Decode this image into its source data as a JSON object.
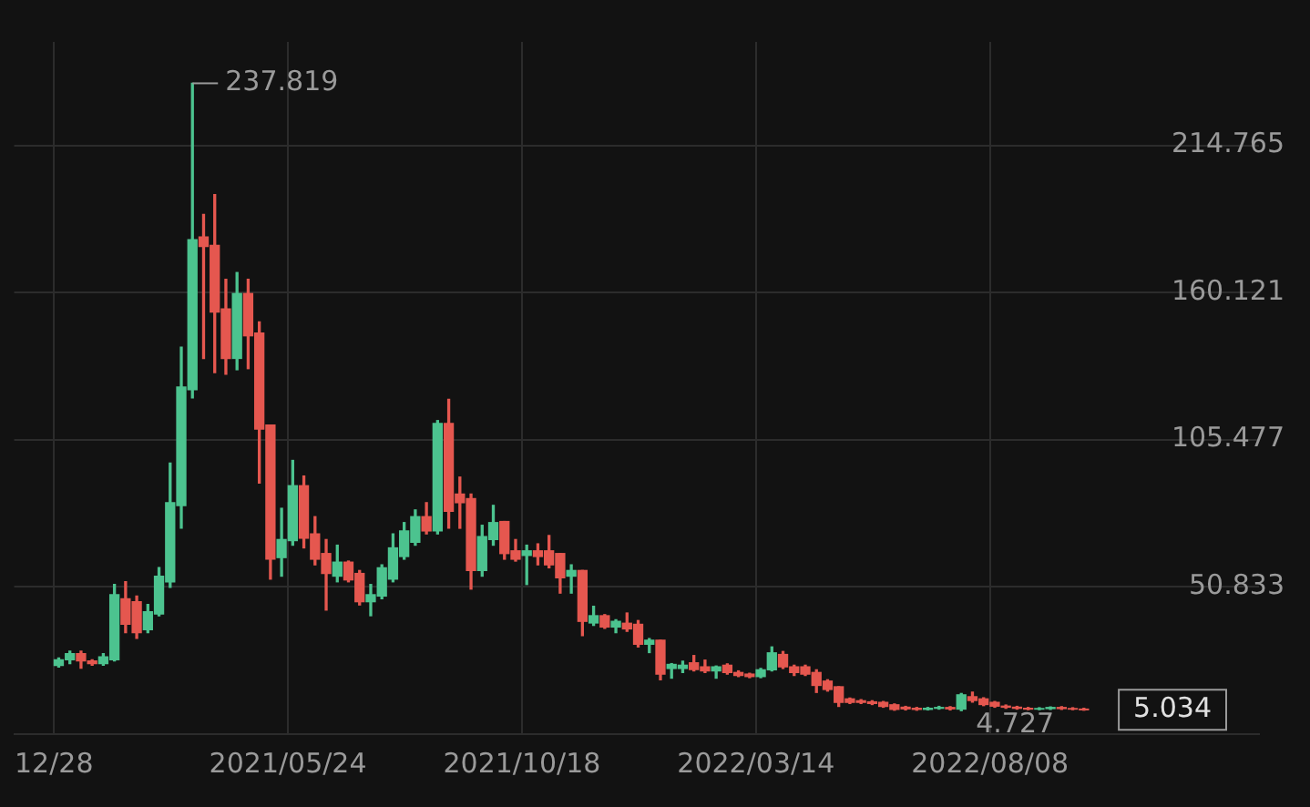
{
  "chart_data": {
    "type": "candlestick",
    "x": [
      "2020-12-31",
      "2021-01-07",
      "2021-01-14",
      "2021-01-21",
      "2021-01-28",
      "2021-02-04",
      "2021-02-11",
      "2021-02-18",
      "2021-02-25",
      "2021-03-04",
      "2021-03-11",
      "2021-03-18",
      "2021-03-25",
      "2021-04-01",
      "2021-04-08",
      "2021-04-15",
      "2021-04-22",
      "2021-04-29",
      "2021-05-06",
      "2021-05-13",
      "2021-05-20",
      "2021-05-27",
      "2021-06-03",
      "2021-06-10",
      "2021-06-17",
      "2021-06-24",
      "2021-07-01",
      "2021-07-08",
      "2021-07-15",
      "2021-07-22",
      "2021-07-29",
      "2021-08-05",
      "2021-08-12",
      "2021-08-19",
      "2021-08-26",
      "2021-09-02",
      "2021-09-09",
      "2021-09-16",
      "2021-09-23",
      "2021-09-30",
      "2021-10-07",
      "2021-10-14",
      "2021-10-21",
      "2021-10-28",
      "2021-11-04",
      "2021-11-11",
      "2021-11-18",
      "2021-11-25",
      "2021-12-02",
      "2021-12-09",
      "2021-12-16",
      "2021-12-23",
      "2021-12-30",
      "2022-01-06",
      "2022-01-13",
      "2022-01-20",
      "2022-01-27",
      "2022-02-03",
      "2022-02-10",
      "2022-02-17",
      "2022-02-24",
      "2022-03-03",
      "2022-03-10",
      "2022-03-17",
      "2022-03-24",
      "2022-03-31",
      "2022-04-07",
      "2022-04-14",
      "2022-04-21",
      "2022-04-28",
      "2022-05-05",
      "2022-05-12",
      "2022-05-19",
      "2022-05-26",
      "2022-06-02",
      "2022-06-09",
      "2022-06-16",
      "2022-06-23",
      "2022-06-30",
      "2022-07-07",
      "2022-07-14",
      "2022-07-21",
      "2022-07-28",
      "2022-08-04",
      "2022-08-11",
      "2022-08-18",
      "2022-08-25",
      "2022-09-01",
      "2022-09-08",
      "2022-09-15",
      "2022-09-22",
      "2022-09-29",
      "2022-10-06"
    ],
    "ohlc": [
      [
        21.5,
        24.3,
        20.9,
        23.6
      ],
      [
        23.6,
        26.8,
        22.2,
        25.9
      ],
      [
        25.9,
        26.8,
        20.5,
        23.2
      ],
      [
        23.2,
        23.6,
        21.6,
        22.2
      ],
      [
        22.2,
        25.9,
        21.6,
        24.7
      ],
      [
        23.6,
        51.6,
        23.2,
        47.8
      ],
      [
        46.3,
        52.6,
        33.7,
        36.8
      ],
      [
        45.2,
        47.3,
        31.6,
        33.7
      ],
      [
        34.8,
        44.2,
        33.7,
        41.5
      ],
      [
        40.6,
        57.9,
        40,
        54.7
      ],
      [
        52.6,
        96.7,
        50.5,
        82
      ],
      [
        80.9,
        139.8,
        72.5,
        125
      ],
      [
        124,
        237.819,
        120.9,
        179.7
      ],
      [
        180.7,
        189.1,
        135.6,
        177.2
      ],
      [
        177.6,
        196.5,
        130.3,
        152.8
      ],
      [
        154,
        165,
        129.7,
        135.6
      ],
      [
        135.6,
        167.5,
        131.4,
        159.7
      ],
      [
        159.7,
        165,
        131.8,
        144
      ],
      [
        145,
        149.2,
        89.3,
        109.3
      ],
      [
        110.8,
        110.8,
        53.6,
        61
      ],
      [
        61.6,
        79.9,
        54.7,
        68.3
      ],
      [
        67.9,
        97.7,
        66.2,
        88.3
      ],
      [
        88.3,
        91.9,
        65.2,
        68.8
      ],
      [
        70.4,
        76.8,
        58.9,
        61
      ],
      [
        63.1,
        68.3,
        42.1,
        55.7
      ],
      [
        54.7,
        66.2,
        52.6,
        59.9
      ],
      [
        59.9,
        60.3,
        52.6,
        53.3
      ],
      [
        55.7,
        56.8,
        44,
        45.2
      ],
      [
        45.2,
        51.6,
        40,
        47.8
      ],
      [
        47.3,
        58.9,
        46.3,
        57.8
      ],
      [
        53.6,
        70.4,
        52.6,
        65.2
      ],
      [
        62,
        74.6,
        61,
        71.5
      ],
      [
        67.3,
        79.3,
        66.2,
        76.8
      ],
      [
        76.8,
        82,
        70.4,
        71.5
      ],
      [
        71.5,
        112.5,
        70.4,
        111.4
      ],
      [
        111.4,
        120.4,
        72.5,
        78.8
      ],
      [
        85.2,
        91.5,
        72.5,
        82
      ],
      [
        83.5,
        85.2,
        49.9,
        56.8
      ],
      [
        56.8,
        73.6,
        54.7,
        69.4
      ],
      [
        68.3,
        81,
        66.2,
        74.6
      ],
      [
        75,
        75,
        61,
        63.1
      ],
      [
        64.1,
        68.3,
        60.3,
        61
      ],
      [
        62.4,
        66.2,
        51.6,
        64.1
      ],
      [
        64.1,
        66.7,
        58.9,
        62
      ],
      [
        64.1,
        69.8,
        57.8,
        58.9
      ],
      [
        63.1,
        63.1,
        48.4,
        54.1
      ],
      [
        54.7,
        58.9,
        48.4,
        56.8
      ],
      [
        56.8,
        56.8,
        32.6,
        37.9
      ],
      [
        37.3,
        43.5,
        36.4,
        40
      ],
      [
        40,
        40.4,
        35.3,
        35.8
      ],
      [
        35.8,
        38.5,
        33.7,
        37.9
      ],
      [
        37.2,
        41,
        34.2,
        35.1
      ],
      [
        36.8,
        38.2,
        28.4,
        29.4
      ],
      [
        29.4,
        31.5,
        26.3,
        30.9
      ],
      [
        30.9,
        30.9,
        16.2,
        18.3
      ],
      [
        20.4,
        22.2,
        16.8,
        21.9
      ],
      [
        20.4,
        23.1,
        18.9,
        21.6
      ],
      [
        22.5,
        25.2,
        19.5,
        20
      ],
      [
        21,
        23.5,
        18.9,
        19.5
      ],
      [
        19.5,
        21.3,
        16.8,
        21
      ],
      [
        21.6,
        22.1,
        18.3,
        18.9
      ],
      [
        18.9,
        19.5,
        17.4,
        17.8
      ],
      [
        18.3,
        18.6,
        17,
        17.4
      ],
      [
        17.4,
        20.4,
        17,
        19.9
      ],
      [
        19.9,
        28.4,
        19.5,
        26.2
      ],
      [
        25.6,
        26.7,
        20.4,
        21
      ],
      [
        21,
        21.6,
        17.8,
        18.9
      ],
      [
        21,
        21.6,
        17.8,
        18.3
      ],
      [
        18.9,
        19.9,
        11.5,
        14.1
      ],
      [
        15.7,
        16.2,
        12,
        12.6
      ],
      [
        13.6,
        13.6,
        6.3,
        7.8
      ],
      [
        9.1,
        9.4,
        7.4,
        7.8
      ],
      [
        8.4,
        8.8,
        7.4,
        7.8
      ],
      [
        8,
        8.4,
        7,
        7.4
      ],
      [
        7.8,
        8.1,
        6,
        6.3
      ],
      [
        6.9,
        7.2,
        4.9,
        5.2
      ],
      [
        6,
        6.3,
        5,
        5.4
      ],
      [
        5.6,
        5.9,
        4.9,
        5.2
      ],
      [
        5.2,
        5.9,
        5,
        5.6
      ],
      [
        5.6,
        6.3,
        5.3,
        5.9
      ],
      [
        5.9,
        6.2,
        5,
        5.4
      ],
      [
        5.3,
        11.1,
        4.727,
        10.6
      ],
      [
        9.9,
        11.6,
        7.9,
        8.5
      ],
      [
        9.1,
        9.5,
        6.6,
        7
      ],
      [
        7.8,
        8.1,
        6,
        6.4
      ],
      [
        6.4,
        6.8,
        5.6,
        6
      ],
      [
        6,
        6.3,
        5.3,
        5.6
      ],
      [
        5.6,
        5.9,
        5.1,
        5.3
      ],
      [
        5.3,
        5.8,
        5.1,
        5.5
      ],
      [
        5.5,
        6.1,
        5.2,
        5.9
      ],
      [
        5.9,
        6.2,
        5.2,
        5.5
      ],
      [
        5.5,
        5.8,
        5.1,
        5.3
      ],
      [
        5.3,
        5.6,
        4.9,
        5.034
      ]
    ],
    "colors": [
      "#4cc38f",
      "#4cc38f",
      "#e5574f",
      "#e5574f",
      "#4cc38f",
      "#4cc38f",
      "#e5574f",
      "#e5574f",
      "#4cc38f",
      "#4cc38f",
      "#4cc38f",
      "#4cc38f",
      "#4cc38f",
      "#e5574f",
      "#e5574f",
      "#e5574f",
      "#4cc38f",
      "#e5574f",
      "#e5574f",
      "#e5574f",
      "#4cc38f",
      "#4cc38f",
      "#e5574f",
      "#e5574f",
      "#e5574f",
      "#4cc38f",
      "#e5574f",
      "#e5574f",
      "#4cc38f",
      "#4cc38f",
      "#4cc38f",
      "#4cc38f",
      "#4cc38f",
      "#e5574f",
      "#4cc38f",
      "#e5574f",
      "#e5574f",
      "#e5574f",
      "#4cc38f",
      "#4cc38f",
      "#e5574f",
      "#e5574f",
      "#4cc38f",
      "#e5574f",
      "#e5574f",
      "#e5574f",
      "#4cc38f",
      "#e5574f",
      "#4cc38f",
      "#e5574f",
      "#4cc38f",
      "#e5574f",
      "#e5574f",
      "#4cc38f",
      "#e5574f",
      "#4cc38f",
      "#4cc38f",
      "#e5574f",
      "#e5574f",
      "#4cc38f",
      "#e5574f",
      "#e5574f",
      "#e5574f",
      "#4cc38f",
      "#4cc38f",
      "#e5574f",
      "#e5574f",
      "#e5574f",
      "#e5574f",
      "#e5574f",
      "#e5574f",
      "#e5574f",
      "#e5574f",
      "#e5574f",
      "#e5574f",
      "#e5574f",
      "#e5574f",
      "#e5574f",
      "#4cc38f",
      "#4cc38f",
      "#e5574f",
      "#4cc38f",
      "#e5574f",
      "#e5574f",
      "#e5574f",
      "#e5574f",
      "#e5574f",
      "#e5574f",
      "#4cc38f",
      "#4cc38f",
      "#e5574f",
      "#e5574f",
      "#e5574f"
    ],
    "xlim": [
      "2020-12-03",
      "2023-01-24"
    ],
    "xticks": [
      {
        "value": "2020-12-28",
        "label": "12/28"
      },
      {
        "value": "2021-05-24",
        "label": "2021/05/24"
      },
      {
        "value": "2021-10-18",
        "label": "2021/10/18"
      },
      {
        "value": "2022-03-14",
        "label": "2022/03/14"
      },
      {
        "value": "2022-08-08",
        "label": "2022/08/08"
      }
    ],
    "ylim": [
      -4,
      253.2
    ],
    "yticks": [
      50.833,
      105.477,
      160.121,
      214.765
    ],
    "grid": true,
    "annotations": [
      {
        "text": "237.819",
        "x": "2021-03-25",
        "y": 237.819
      },
      {
        "text": "4.727",
        "x": "2022-07-21",
        "y": 4.727
      },
      "5.034"
    ]
  }
}
